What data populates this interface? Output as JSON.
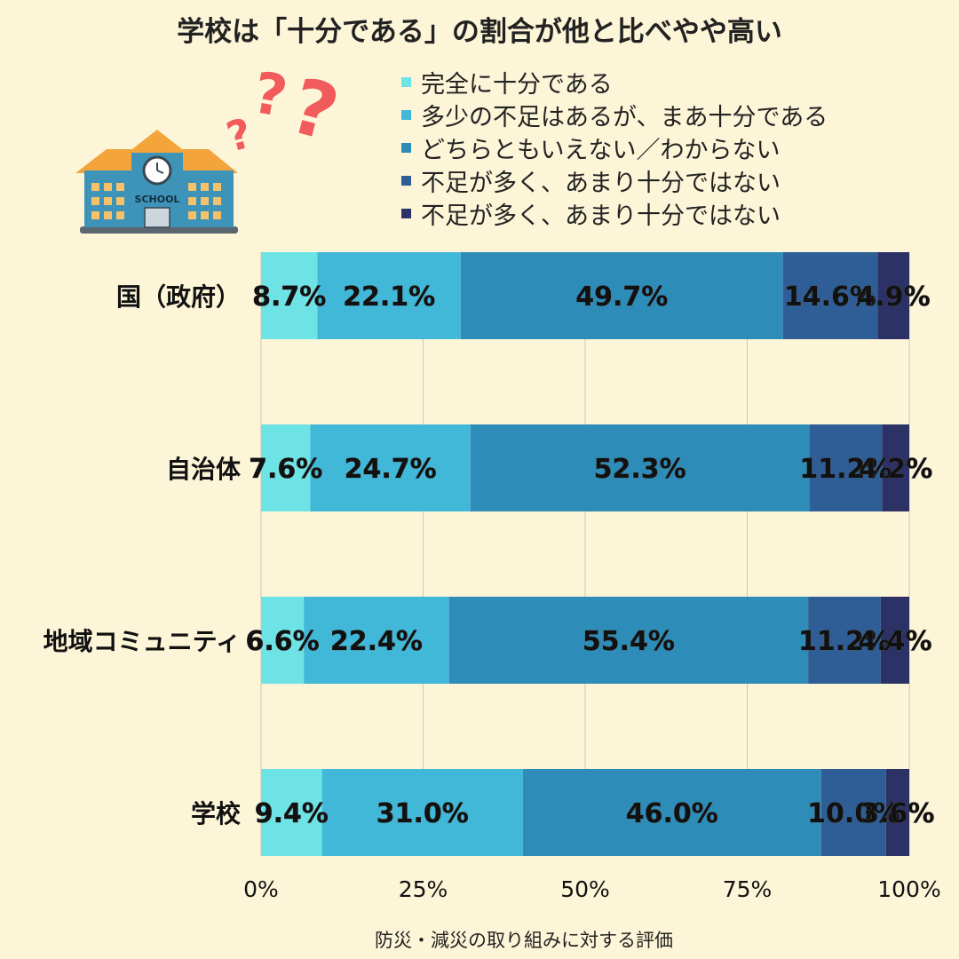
{
  "chart_data": {
    "type": "bar",
    "orientation": "horizontal",
    "stacked": true,
    "title": "学校は「十分である」の割合が他と比べやや高い",
    "xlabel": "防災・減災の取り組みに対する評価",
    "ylabel": "",
    "categories": [
      "国（政府）",
      "自治体",
      "地域コミュニティ",
      "学校"
    ],
    "xlim": [
      0,
      100
    ],
    "xticks": [
      "0%",
      "25%",
      "50%",
      "75%",
      "100%"
    ],
    "grid": true,
    "legend_position": "top-right",
    "series": [
      {
        "name": "完全に十分である",
        "color": "#6ee3e6",
        "values": [
          8.7,
          7.6,
          6.6,
          9.4
        ]
      },
      {
        "name": "多少の不足はあるが、まあ十分である",
        "color": "#41b8d8",
        "values": [
          22.1,
          24.7,
          22.4,
          31.0
        ]
      },
      {
        "name": "どちらともいえない／わからない",
        "color": "#2e8cb8",
        "values": [
          49.7,
          52.3,
          55.4,
          46.0
        ]
      },
      {
        "name": "不足が多く、あまり十分ではない",
        "color": "#2e5e95",
        "values": [
          14.6,
          11.2,
          11.2,
          10.0
        ]
      },
      {
        "name": "不足が多く、あまり十分ではない",
        "color": "#2d3266",
        "values": [
          4.9,
          4.2,
          4.4,
          3.6
        ]
      }
    ],
    "value_labels": [
      [
        "8.7%",
        "7.6%",
        "6.6%",
        "9.4%"
      ],
      [
        "22.1%",
        "24.7%",
        "22.4%",
        "31.0%"
      ],
      [
        "49.7%",
        "52.3%",
        "55.4%",
        "46.0%"
      ],
      [
        "14.6%",
        "11.2%",
        "11.2%",
        "10.0%"
      ],
      [
        "4.9%",
        "4.2%",
        "4.4%",
        "3.6%"
      ]
    ],
    "decoration": {
      "illustration": "school-building-with-question-marks",
      "illustration_text": "SCHOOL"
    }
  }
}
